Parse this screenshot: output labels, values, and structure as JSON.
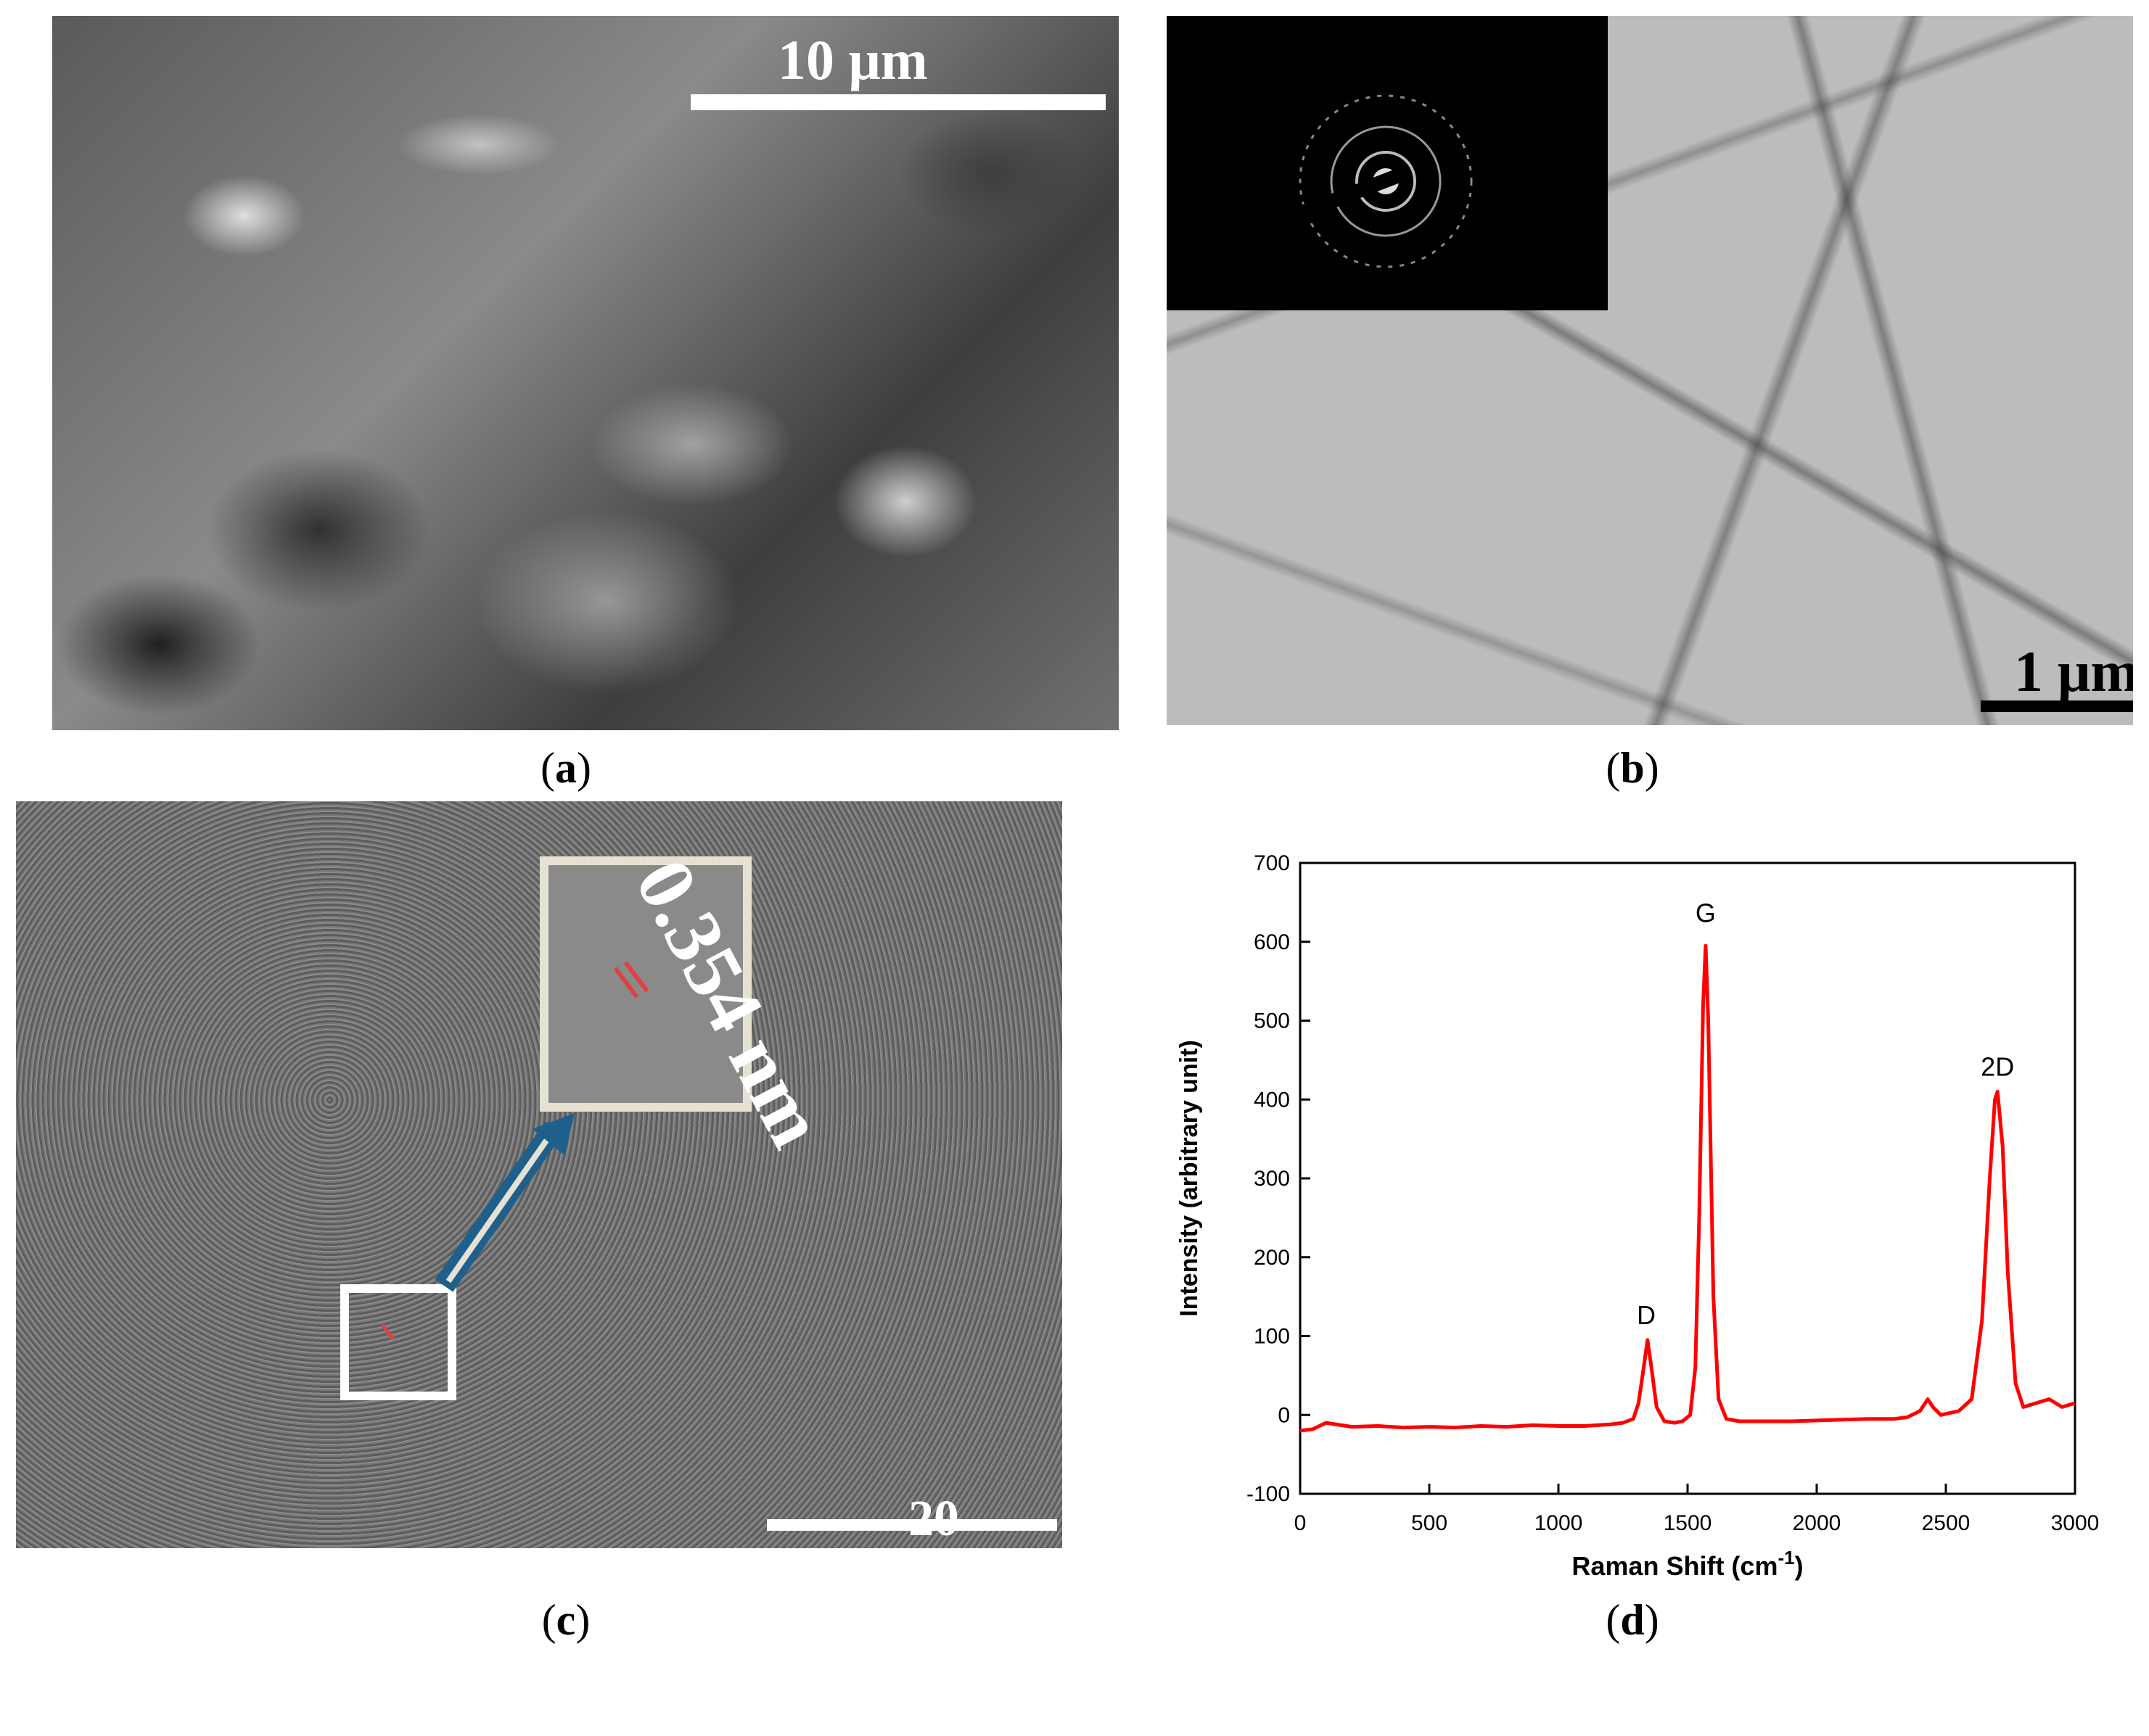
{
  "panels": {
    "a": {
      "caption": "a",
      "scalebar": "10 μm"
    },
    "b": {
      "caption": "b",
      "scalebar": "1 μm"
    },
    "c": {
      "caption": "c",
      "scalebar": "20",
      "spacing": "0.354 nm"
    },
    "d": {
      "caption": "d"
    }
  },
  "colors": {
    "series": "#ff0000",
    "arrow": "#1f5f8b",
    "box": "#ffffff",
    "inset_box": "#e6e2d3",
    "lattice_marks": "#e04040"
  },
  "chart_data": {
    "type": "line",
    "xlabel": "Raman Shift (cm",
    "xlabel_sup": "-1",
    "xlabel_tail": ")",
    "ylabel": "Intensity (arbitrary unit)",
    "xlim": [
      0,
      3000
    ],
    "ylim": [
      -100,
      700
    ],
    "xticks": [
      0,
      500,
      1000,
      1500,
      2000,
      2500,
      3000
    ],
    "yticks": [
      -100,
      0,
      100,
      200,
      300,
      400,
      500,
      600,
      700
    ],
    "grid": false,
    "series": [
      {
        "x": [
          0,
          50,
          100,
          200,
          300,
          400,
          500,
          600,
          700,
          800,
          900,
          1000,
          1100,
          1200,
          1250,
          1290,
          1310,
          1330,
          1345,
          1360,
          1380,
          1410,
          1450,
          1480,
          1510,
          1530,
          1545,
          1560,
          1570,
          1580,
          1600,
          1620,
          1650,
          1700,
          1800,
          1900,
          2000,
          2100,
          2200,
          2300,
          2350,
          2400,
          2430,
          2450,
          2480,
          2550,
          2600,
          2640,
          2670,
          2690,
          2700,
          2720,
          2740,
          2770,
          2800,
          2850,
          2900,
          2950,
          3000
        ],
        "values": [
          -20,
          -18,
          -10,
          -15,
          -14,
          -16,
          -15,
          -16,
          -14,
          -15,
          -13,
          -14,
          -14,
          -12,
          -10,
          -5,
          15,
          60,
          95,
          60,
          10,
          -8,
          -10,
          -8,
          0,
          60,
          250,
          520,
          595,
          500,
          150,
          20,
          -5,
          -8,
          -8,
          -8,
          -7,
          -6,
          -5,
          -5,
          -3,
          5,
          20,
          10,
          0,
          5,
          20,
          120,
          300,
          400,
          410,
          340,
          180,
          40,
          10,
          15,
          20,
          10,
          15
        ]
      }
    ],
    "annotations": [
      {
        "text": "D",
        "x": 1340,
        "y": 115
      },
      {
        "text": "G",
        "x": 1570,
        "y": 625
      },
      {
        "text": "2D",
        "x": 2700,
        "y": 430
      }
    ]
  }
}
